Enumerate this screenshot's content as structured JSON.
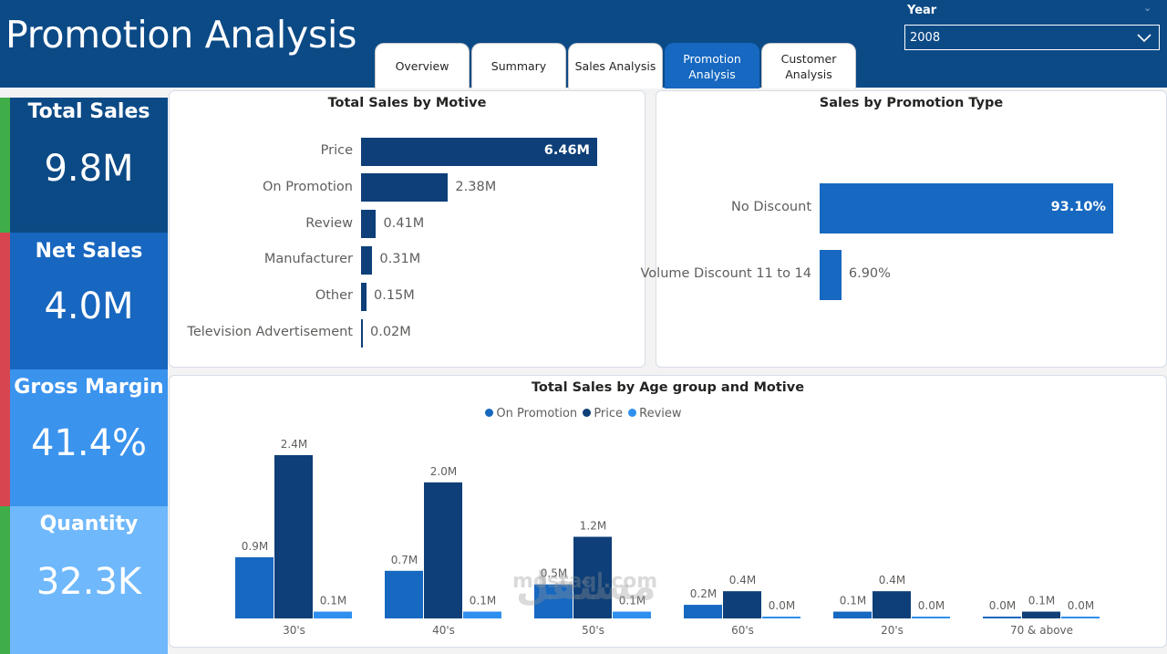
{
  "page_title": "Promotion Analysis",
  "tabs": [
    {
      "label": "Overview",
      "active": false
    },
    {
      "label": "Summary",
      "active": false
    },
    {
      "label": "Sales Analysis",
      "active": false
    },
    {
      "label": "Promotion\nAnalysis",
      "active": true
    },
    {
      "label": "Customer\nAnalysis",
      "active": false
    }
  ],
  "slicer": {
    "label": "Year",
    "value": "2008"
  },
  "kpis": [
    {
      "label": "Total Sales",
      "value": "9.8M",
      "bg": "#0c4a86",
      "stripe": "#3fae49"
    },
    {
      "label": "Net Sales",
      "value": "4.0M",
      "bg": "#1766bf",
      "stripe": "#d64550"
    },
    {
      "label": "Gross Margin",
      "value": "41.4%",
      "bg": "#3a93ed",
      "stripe": "#d64550"
    },
    {
      "label": "Quantity",
      "value": "32.3K",
      "bg": "#6fb8fb",
      "stripe": "#3fae49"
    }
  ],
  "chart_data": [
    {
      "type": "bar",
      "orientation": "horizontal",
      "title": "Total Sales by Motive",
      "categories": [
        "Price",
        "On Promotion",
        "Review",
        "Manufacturer",
        "Other",
        "Television Advertisement"
      ],
      "values": [
        6.46,
        2.38,
        0.41,
        0.31,
        0.15,
        0.02
      ],
      "labels": [
        "6.46M",
        "2.38M",
        "0.41M",
        "0.31M",
        "0.15M",
        "0.02M"
      ],
      "color": "#0e3f78"
    },
    {
      "type": "bar",
      "orientation": "horizontal",
      "title": "Sales by Promotion Type",
      "categories": [
        "No Discount",
        "Volume Discount 11 to 14"
      ],
      "values": [
        93.1,
        6.9
      ],
      "labels": [
        "93.10%",
        "6.90%"
      ],
      "color": "#1668c0"
    },
    {
      "type": "bar",
      "title": "Total Sales by Age group and Motive",
      "categories": [
        "30's",
        "40's",
        "50's",
        "60's",
        "20's",
        "70 & above"
      ],
      "series": [
        {
          "name": "On Promotion",
          "color": "#1668c0",
          "values": [
            0.9,
            0.7,
            0.5,
            0.2,
            0.1,
            0.0
          ]
        },
        {
          "name": "Price",
          "color": "#0e3f78",
          "values": [
            2.4,
            2.0,
            1.2,
            0.4,
            0.4,
            0.1
          ]
        },
        {
          "name": "Review",
          "color": "#2f8fee",
          "values": [
            0.1,
            0.1,
            0.1,
            0.0,
            0.0,
            0.0
          ]
        }
      ],
      "labels": [
        [
          "0.9M",
          "0.7M",
          "0.5M",
          "0.2M",
          "0.1M",
          "0.0M"
        ],
        [
          "2.4M",
          "2.0M",
          "1.2M",
          "0.4M",
          "0.4M",
          "0.1M"
        ],
        [
          "0.1M",
          "0.1M",
          "0.1M",
          "0.0M",
          "0.0M",
          "0.0M"
        ]
      ],
      "legend": "top-center"
    }
  ],
  "watermark": {
    "text": "mostaql.com",
    "arabic": "مستقل"
  }
}
